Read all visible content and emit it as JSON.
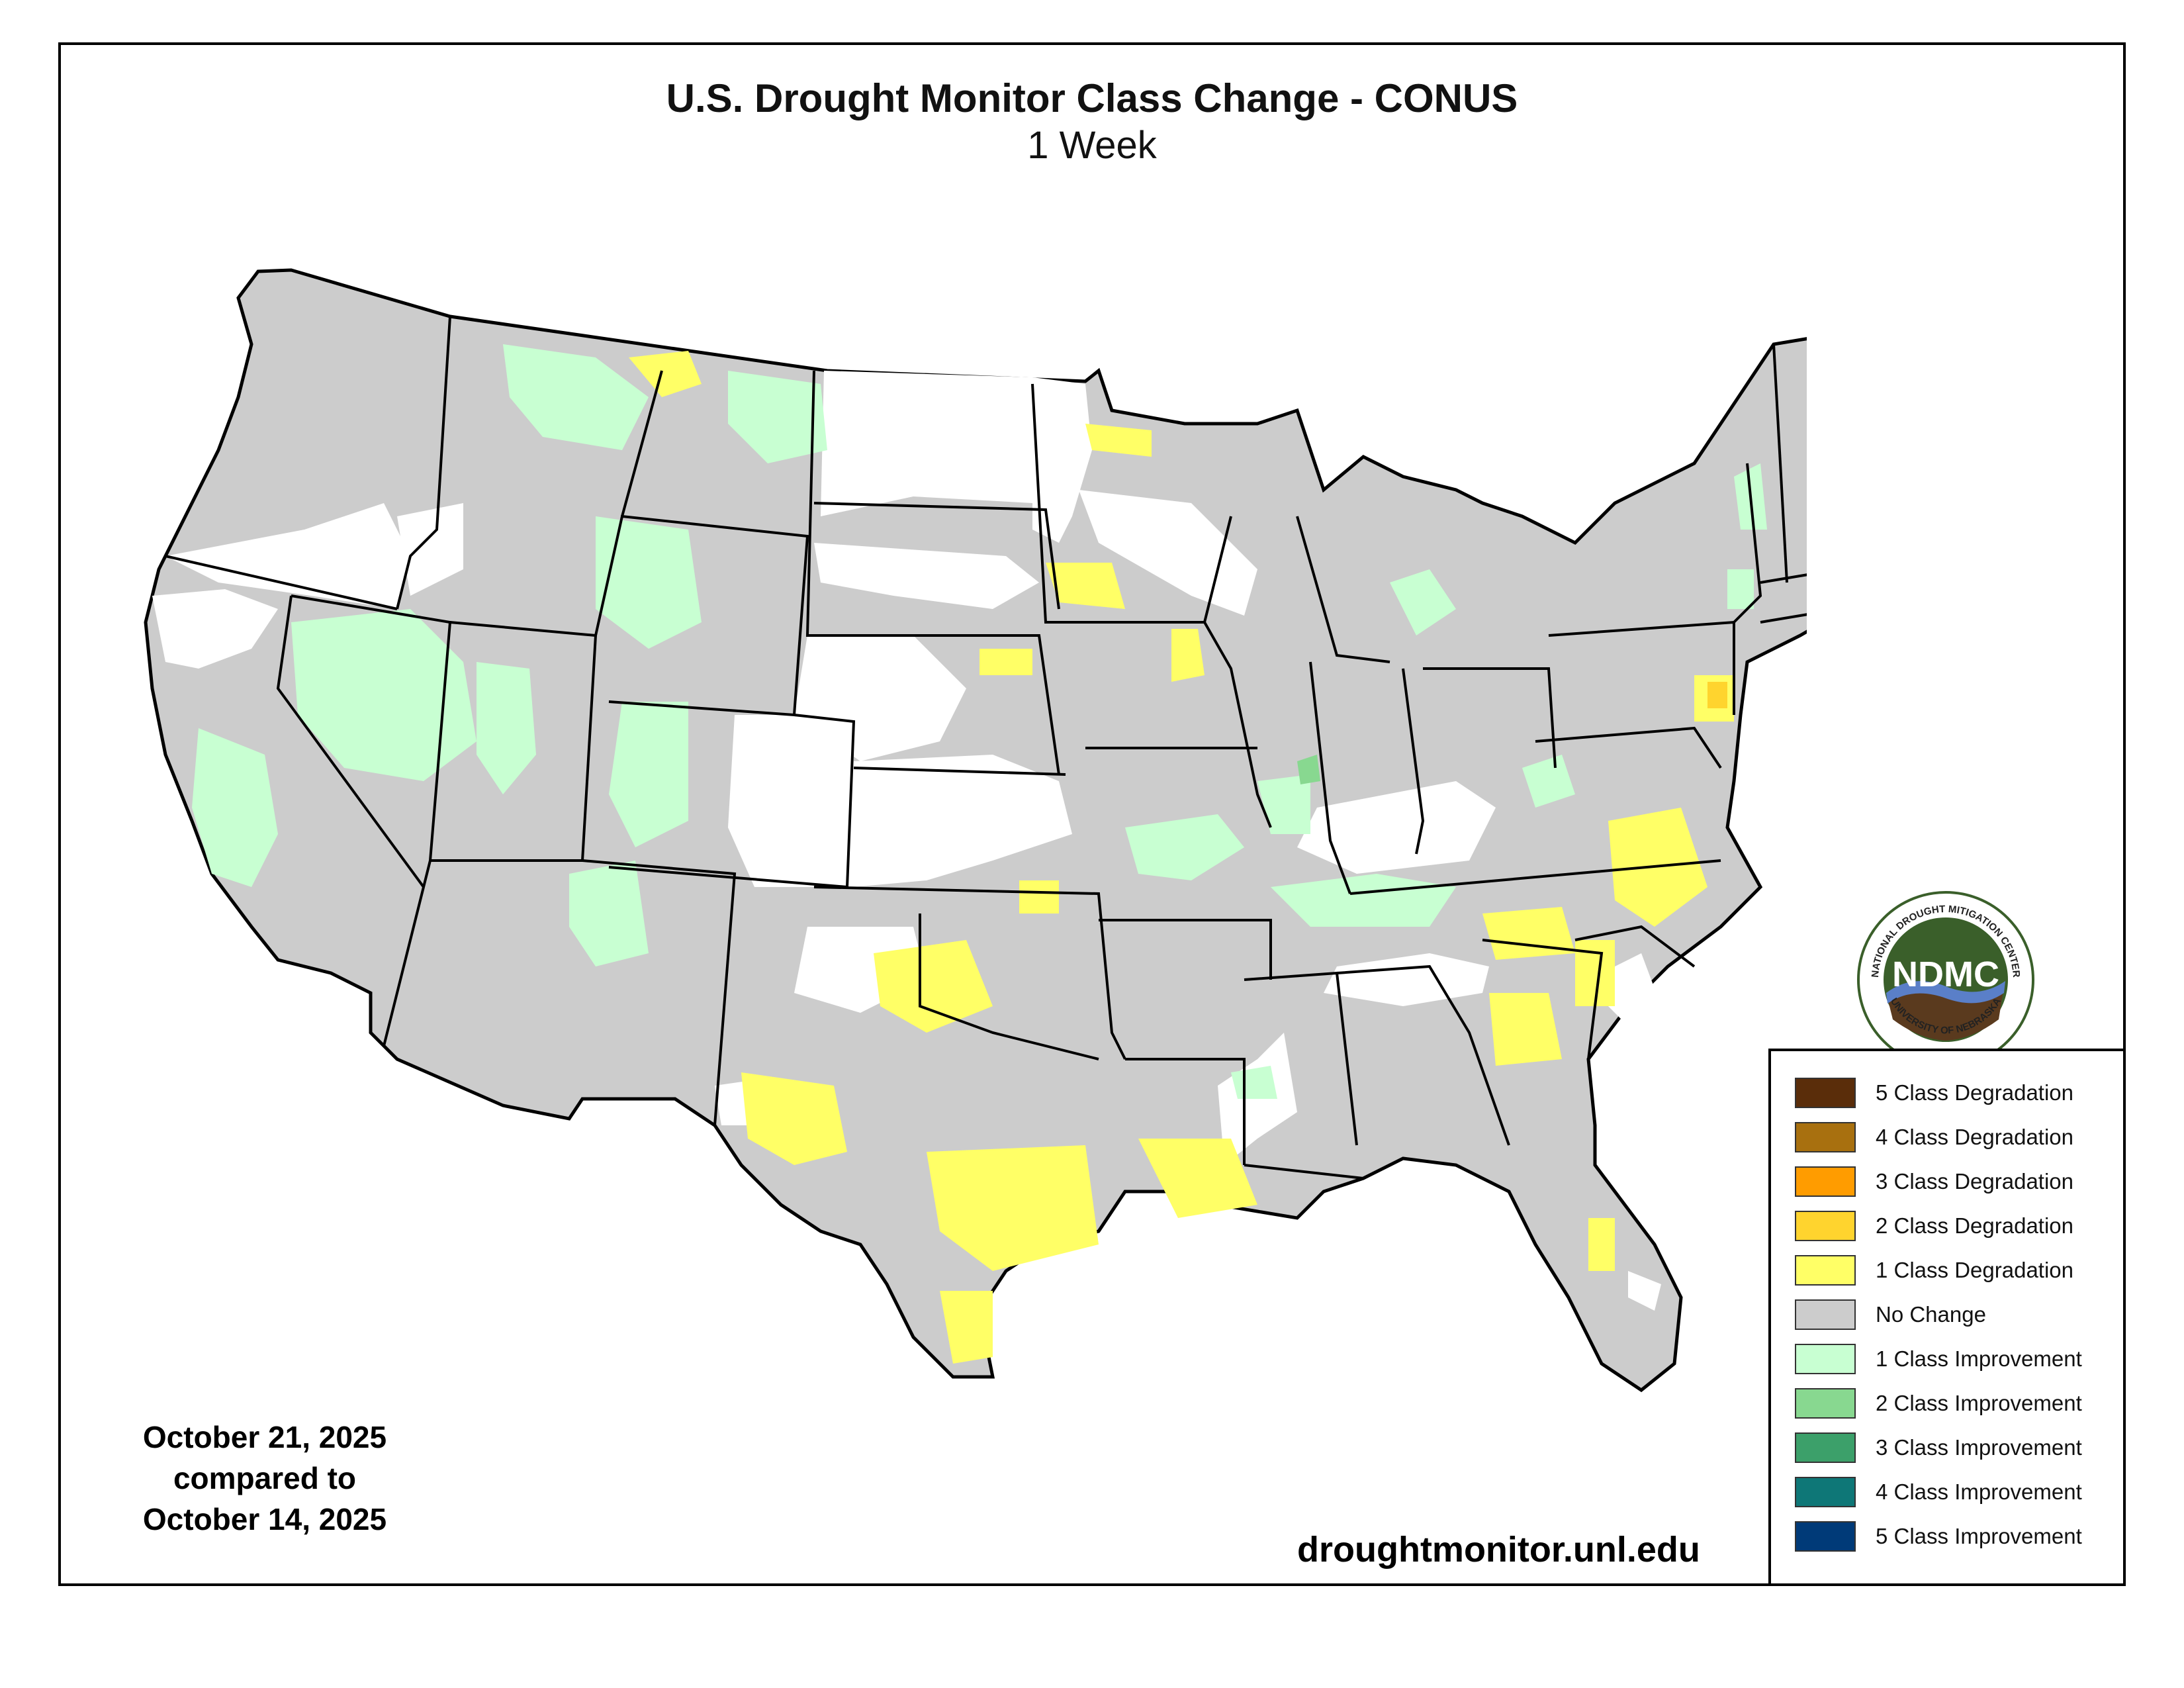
{
  "title": "U.S. Drought Monitor Class Change - CONUS",
  "subtitle": "1 Week",
  "date": {
    "line1": "October 21, 2025",
    "line2": "compared to",
    "line3": "October 14, 2025"
  },
  "website": "droughtmonitor.unl.edu",
  "logo": {
    "ring_text_top": "NATIONAL DROUGHT MITIGATION CENTER",
    "ring_text_bottom": "UNIVERSITY OF NEBRASKA",
    "center": "NDMC"
  },
  "legend": [
    {
      "label": "5 Class Degradation",
      "color": "#5a2d0a"
    },
    {
      "label": "4 Class Degradation",
      "color": "#a8700f"
    },
    {
      "label": "3 Class Degradation",
      "color": "#ff9c00"
    },
    {
      "label": "2 Class Degradation",
      "color": "#ffd42e"
    },
    {
      "label": "1 Class Degradation",
      "color": "#ffff66"
    },
    {
      "label": "No Change",
      "color": "#cccccc"
    },
    {
      "label": "1 Class Improvement",
      "color": "#c8ffd2"
    },
    {
      "label": "2 Class Improvement",
      "color": "#88d890"
    },
    {
      "label": "3 Class Improvement",
      "color": "#3ca06a"
    },
    {
      "label": "4 Class Improvement",
      "color": "#0e7777"
    },
    {
      "label": "5 Class Improvement",
      "color": "#003a78"
    }
  ],
  "map_colors": {
    "no_change": "#cccccc",
    "degradation_1": "#ffff66",
    "degradation_2": "#ffd42e",
    "improvement_1": "#c8ffd2",
    "improvement_2": "#88d890",
    "none": "#ffffff",
    "border": "#000000"
  }
}
